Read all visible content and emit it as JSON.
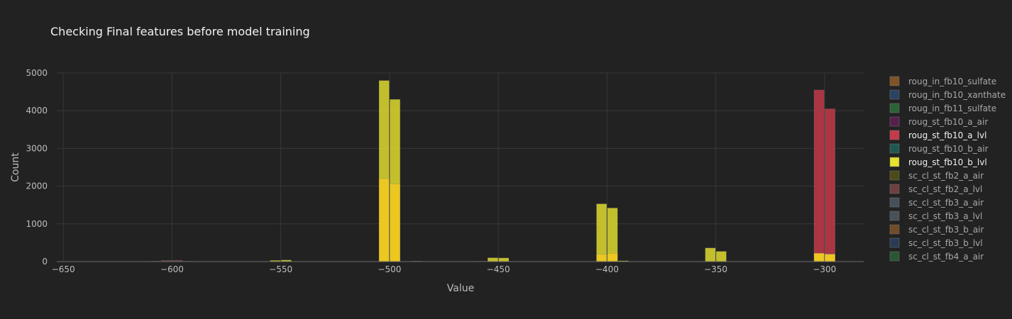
{
  "chart_data": {
    "type": "bar",
    "title": "Checking Final features before model training",
    "xlabel": "Value",
    "ylabel": "Count",
    "xlim": [
      -653,
      -282
    ],
    "ylim": [
      0,
      5000
    ],
    "xticks": [
      -650,
      -600,
      -550,
      -500,
      -450,
      -400,
      -350,
      -300
    ],
    "yticks": [
      0,
      1000,
      2000,
      3000,
      4000,
      5000
    ],
    "grid": true,
    "barmode": "overlay",
    "bin_width": 5,
    "legend_position": "right",
    "series": [
      {
        "name": "roug_in_fb10_sulfate",
        "color": "#a0642a",
        "active": false,
        "bars": []
      },
      {
        "name": "roug_in_fb10_xanthate",
        "color": "#2f4f78",
        "active": false,
        "bars": []
      },
      {
        "name": "roug_in_fb11_sulfate",
        "color": "#2e7a3c",
        "active": false,
        "bars": []
      },
      {
        "name": "roug_st_fb10_a_air",
        "color": "#6a1f5e",
        "active": false,
        "bars": []
      },
      {
        "name": "roug_st_fb10_a_lvl",
        "color": "#c8394a",
        "active": true,
        "bars": [
          [
            -302.5,
            4550
          ],
          [
            -297.5,
            4050
          ],
          [
            -347.5,
            10
          ],
          [
            -402.5,
            15
          ],
          [
            -397.5,
            20
          ]
        ]
      },
      {
        "name": "roug_st_fb10_b_air",
        "color": "#1f6b61",
        "active": false,
        "bars": []
      },
      {
        "name": "roug_st_fb10_b_lvl",
        "color": "#e6e22e",
        "active": true,
        "bars": [
          [
            -502.5,
            4800
          ],
          [
            -497.5,
            4300
          ],
          [
            -402.5,
            1530
          ],
          [
            -397.5,
            1420
          ],
          [
            -352.5,
            360
          ],
          [
            -347.5,
            270
          ],
          [
            -452.5,
            100
          ],
          [
            -447.5,
            95
          ],
          [
            -552.5,
            30
          ],
          [
            -547.5,
            40
          ],
          [
            -302.5,
            220
          ],
          [
            -297.5,
            200
          ],
          [
            -392.5,
            20
          ],
          [
            -487.5,
            10
          ],
          [
            -457.5,
            8
          ]
        ]
      },
      {
        "name": "sc_cl_st_fb2_a_air",
        "color": "#5a5a16",
        "active": false,
        "bars": []
      },
      {
        "name": "sc_cl_st_fb2_a_lvl",
        "color": "#8a4a4a",
        "active": false,
        "bars": [
          [
            -602.5,
            30
          ],
          [
            -597.5,
            35
          ],
          [
            -607.5,
            10
          ],
          [
            -592.5,
            8
          ]
        ]
      },
      {
        "name": "sc_cl_st_fb3_a_air",
        "color": "#53606e",
        "active": false,
        "bars": []
      },
      {
        "name": "sc_cl_st_fb3_a_lvl",
        "color": "#55626a",
        "active": false,
        "bars": []
      },
      {
        "name": "sc_cl_st_fb3_b_air",
        "color": "#8c5a2c",
        "active": false,
        "bars": []
      },
      {
        "name": "sc_cl_st_fb3_b_lvl",
        "color": "#2c4666",
        "active": false,
        "bars": []
      },
      {
        "name": "sc_cl_st_fb4_a_air",
        "color": "#2e6a3a",
        "active": false,
        "bars": []
      }
    ],
    "overlay_bars": {
      "color": "#f2c81e",
      "bars": [
        [
          -502.5,
          2200
        ],
        [
          -497.5,
          2060
        ],
        [
          -402.5,
          190
        ],
        [
          -397.5,
          220
        ],
        [
          -302.5,
          220
        ],
        [
          -297.5,
          190
        ]
      ]
    }
  }
}
